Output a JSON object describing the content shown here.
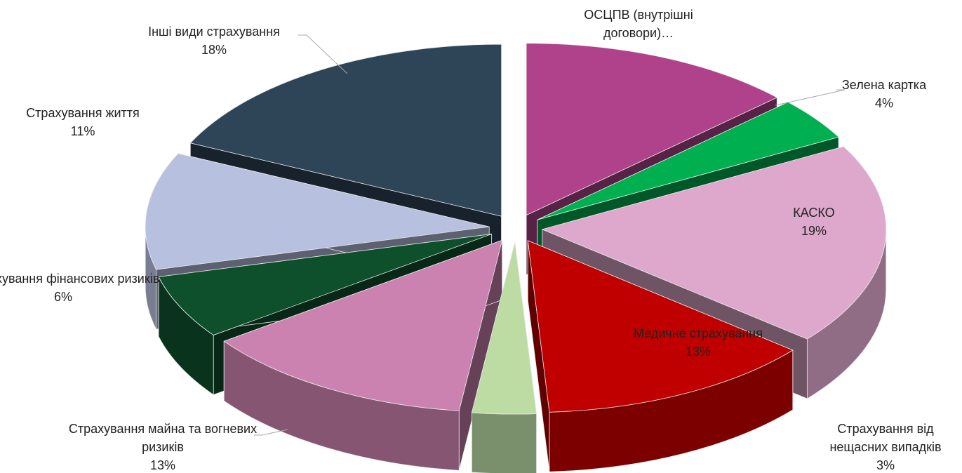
{
  "chart_data": {
    "type": "pie3d",
    "categories": [
      "ОСЦПВ (внутрішні договори)…",
      "Зелена картка",
      "КАСКО",
      "Медичне страхування",
      "Страхування від нещасних випадків",
      "Страхування майна та вогневих ризиків",
      "Страхування фінансових ризиків",
      "Страхування життя",
      "Інші види страхування"
    ],
    "values": [
      13,
      4,
      19,
      13,
      3,
      13,
      6,
      11,
      18
    ],
    "value_labels": [
      null,
      "4%",
      "19%",
      "13%",
      "3%",
      "13%",
      "6%",
      "11%",
      "18%"
    ],
    "colors": [
      "#b0418b",
      "#00b050",
      "#dea8cc",
      "#c00000",
      "#bcdca4",
      "#cc82b0",
      "#0e4f2c",
      "#b8c0e0",
      "#2e4457"
    ]
  }
}
